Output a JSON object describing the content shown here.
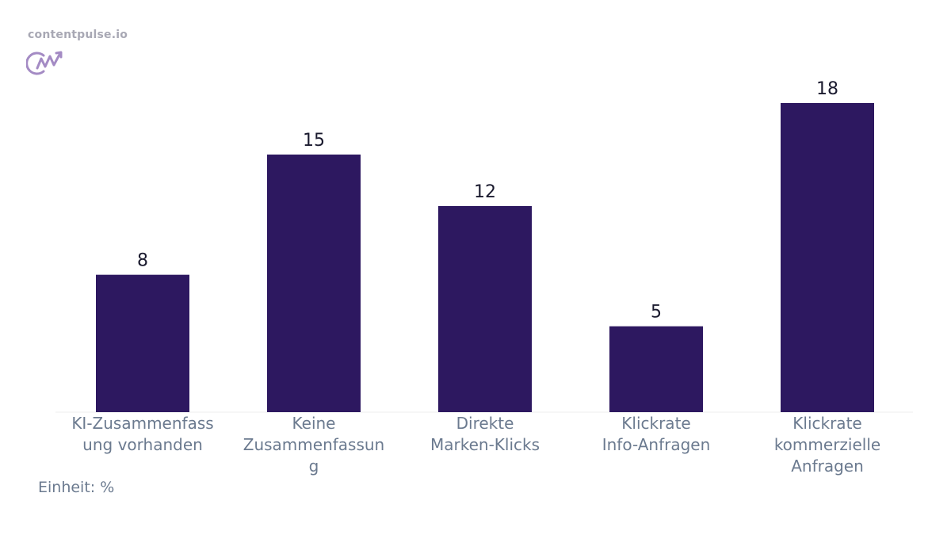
{
  "brand": {
    "site": "contentpulse.io",
    "logo_icon": "cp-logo-icon"
  },
  "colors": {
    "bar": "#2d1860",
    "axis_text": "#6b7a8f",
    "value_text": "#1a1a2e",
    "logo": "#a48bc4"
  },
  "chart_data": {
    "type": "bar",
    "categories": [
      [
        "KI-Zusammenfass",
        "ung vorhanden"
      ],
      [
        "Keine",
        "Zusammenfassun",
        "g"
      ],
      [
        "Direkte",
        "Marken-Klicks"
      ],
      [
        "Klickrate",
        "Info-Anfragen"
      ],
      [
        "Klickrate",
        "kommerzielle",
        "Anfragen"
      ]
    ],
    "values": [
      8,
      15,
      12,
      5,
      18
    ],
    "data_labels": [
      "8",
      "15",
      "12",
      "5",
      "18"
    ],
    "unit_label": "Einheit: %",
    "ylim": [
      0,
      18
    ],
    "grid": false,
    "legend": "none"
  }
}
